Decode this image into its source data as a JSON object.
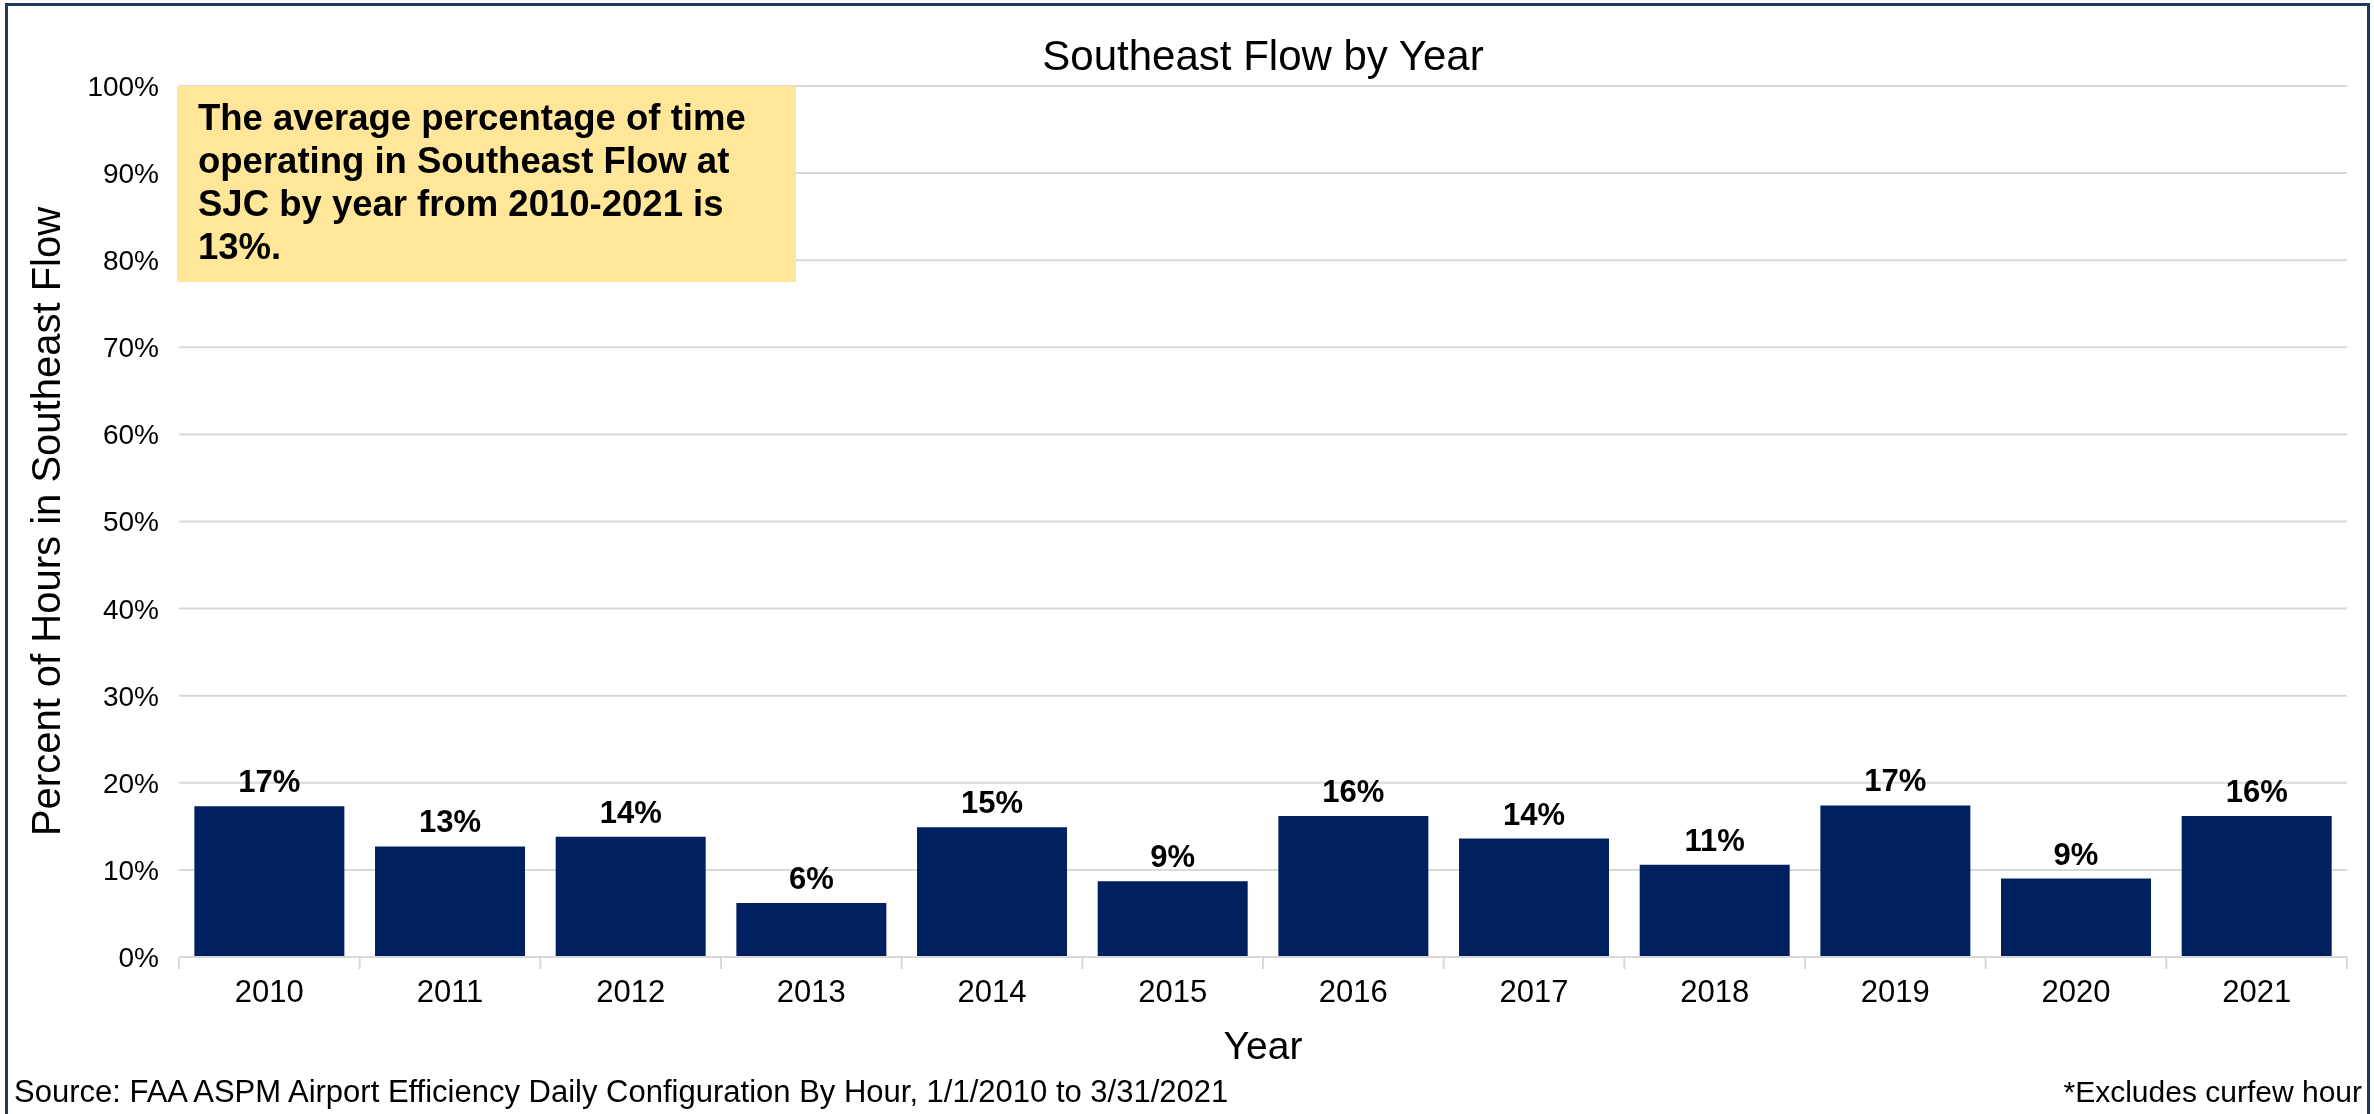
{
  "chart_data": {
    "type": "bar",
    "title": "Southeast Flow by Year",
    "xlabel": "Year",
    "ylabel": "Percent of Hours in Southeast Flow",
    "categories": [
      "2010",
      "2011",
      "2012",
      "2013",
      "2014",
      "2015",
      "2016",
      "2017",
      "2018",
      "2019",
      "2020",
      "2021"
    ],
    "values": [
      17.3,
      12.7,
      13.8,
      6.2,
      14.9,
      8.7,
      16.2,
      13.6,
      10.6,
      17.4,
      9.0,
      16.2
    ],
    "color": "#002060",
    "value_labels": [
      "17%",
      "13%",
      "14%",
      "6%",
      "15%",
      "9%",
      "16%",
      "14%",
      "11%",
      "17%",
      "9%",
      "16%"
    ],
    "ylim": [
      0,
      100
    ],
    "yticks": [
      {
        "value": 0,
        "label": "0%"
      },
      {
        "value": 10,
        "label": "10%"
      },
      {
        "value": 20,
        "label": "20%"
      },
      {
        "value": 30,
        "label": "30%"
      },
      {
        "value": 40,
        "label": "40%"
      },
      {
        "value": 50,
        "label": "50%"
      },
      {
        "value": 60,
        "label": "60%"
      },
      {
        "value": 70,
        "label": "70%"
      },
      {
        "value": 80,
        "label": "80%"
      },
      {
        "value": 90,
        "label": "90%"
      },
      {
        "value": 100,
        "label": "100%"
      }
    ],
    "grid": "y",
    "annotations": [
      "The average percentage of time operating in Southeast Flow at SJC by year from 2010-2021 is 13%.",
      "Source: FAA ASPM Airport Efficiency Daily Configuration By Hour, 1/1/2010 to 3/31/2021",
      "*Excludes curfew hour"
    ]
  }
}
